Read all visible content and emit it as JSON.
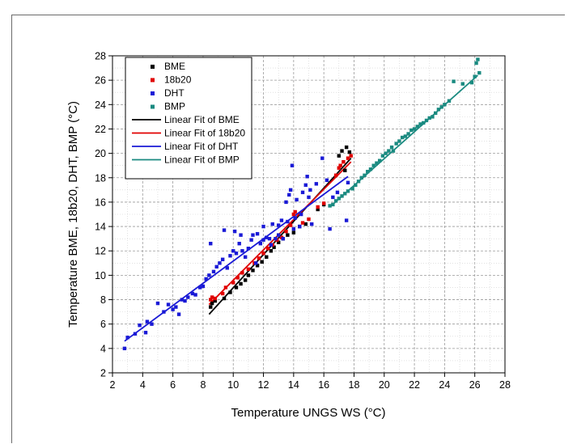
{
  "chart_data": {
    "type": "scatter",
    "xlabel": "Temperature UNGS WS (°C)",
    "ylabel": "Temperature BME, 18b20, DHT, BMP (°C)",
    "xlim": [
      2,
      28
    ],
    "ylim": [
      2,
      28
    ],
    "xticks": [
      "2",
      "4",
      "6",
      "8",
      "10",
      "12",
      "14",
      "16",
      "18",
      "20",
      "22",
      "24",
      "26",
      "28"
    ],
    "yticks": [
      "2",
      "4",
      "6",
      "8",
      "10",
      "12",
      "14",
      "16",
      "18",
      "20",
      "22",
      "24",
      "26",
      "28"
    ],
    "grid": true,
    "legend_position": "top-left",
    "series": [
      {
        "name": "BME",
        "color": "#000000",
        "marker": "square",
        "points": [
          [
            8.5,
            7.4
          ],
          [
            8.6,
            7.7
          ],
          [
            8.8,
            7.9
          ],
          [
            9.4,
            8.1
          ],
          [
            9.8,
            8.6
          ],
          [
            10.2,
            9.0
          ],
          [
            10.5,
            9.3
          ],
          [
            10.8,
            9.6
          ],
          [
            11.0,
            10.0
          ],
          [
            11.3,
            10.4
          ],
          [
            11.6,
            10.8
          ],
          [
            11.9,
            11.1
          ],
          [
            12.2,
            11.5
          ],
          [
            12.5,
            12.0
          ],
          [
            12.7,
            12.3
          ],
          [
            13.0,
            12.7
          ],
          [
            13.3,
            13.0
          ],
          [
            13.6,
            13.3
          ],
          [
            14.0,
            13.5
          ],
          [
            14.4,
            14.0
          ],
          [
            14.8,
            14.2
          ],
          [
            15.6,
            15.4
          ],
          [
            16.0,
            15.8
          ],
          [
            17.0,
            19.8
          ],
          [
            17.2,
            20.2
          ],
          [
            17.5,
            20.5
          ],
          [
            17.7,
            20.1
          ],
          [
            17.4,
            18.6
          ]
        ]
      },
      {
        "name": "18b20",
        "color": "#e00000",
        "marker": "square",
        "points": [
          [
            8.5,
            8.0
          ],
          [
            8.6,
            8.2
          ],
          [
            8.8,
            8.1
          ],
          [
            9.3,
            8.5
          ],
          [
            9.5,
            9.0
          ],
          [
            10.0,
            9.4
          ],
          [
            10.3,
            9.8
          ],
          [
            10.6,
            10.2
          ],
          [
            11.0,
            10.5
          ],
          [
            11.4,
            11.0
          ],
          [
            11.7,
            11.4
          ],
          [
            12.0,
            11.8
          ],
          [
            12.3,
            12.2
          ],
          [
            12.6,
            12.5
          ],
          [
            12.9,
            12.9
          ],
          [
            13.2,
            13.1
          ],
          [
            13.5,
            13.6
          ],
          [
            13.8,
            14.1
          ],
          [
            14.0,
            15.0
          ],
          [
            14.1,
            15.2
          ],
          [
            14.6,
            14.3
          ],
          [
            15.0,
            14.6
          ],
          [
            15.6,
            15.6
          ],
          [
            16.0,
            15.9
          ],
          [
            16.8,
            18.2
          ],
          [
            17.0,
            18.8
          ],
          [
            17.1,
            19.0
          ],
          [
            17.3,
            19.3
          ],
          [
            17.6,
            19.6
          ],
          [
            17.8,
            19.8
          ]
        ]
      },
      {
        "name": "DHT",
        "color": "#1a1ad6",
        "marker": "square",
        "points": [
          [
            2.8,
            4.0
          ],
          [
            3.0,
            4.9
          ],
          [
            3.5,
            5.2
          ],
          [
            3.8,
            5.9
          ],
          [
            4.2,
            5.3
          ],
          [
            4.3,
            6.2
          ],
          [
            4.6,
            6.0
          ],
          [
            5.0,
            7.7
          ],
          [
            5.4,
            7.0
          ],
          [
            5.7,
            7.6
          ],
          [
            6.0,
            7.2
          ],
          [
            6.2,
            7.4
          ],
          [
            6.4,
            6.8
          ],
          [
            6.6,
            8.0
          ],
          [
            6.8,
            7.9
          ],
          [
            7.0,
            8.2
          ],
          [
            7.3,
            8.5
          ],
          [
            7.5,
            8.4
          ],
          [
            7.8,
            9.0
          ],
          [
            8.0,
            9.1
          ],
          [
            8.2,
            9.7
          ],
          [
            8.4,
            10.0
          ],
          [
            8.5,
            12.6
          ],
          [
            8.7,
            10.3
          ],
          [
            8.9,
            10.7
          ],
          [
            9.1,
            11.0
          ],
          [
            9.3,
            11.3
          ],
          [
            9.4,
            13.7
          ],
          [
            9.6,
            10.6
          ],
          [
            9.8,
            11.6
          ],
          [
            10.0,
            12.0
          ],
          [
            10.1,
            13.6
          ],
          [
            10.2,
            11.8
          ],
          [
            10.4,
            12.6
          ],
          [
            10.5,
            13.3
          ],
          [
            10.6,
            12.0
          ],
          [
            10.8,
            11.5
          ],
          [
            11.0,
            12.2
          ],
          [
            11.2,
            12.9
          ],
          [
            11.3,
            13.3
          ],
          [
            11.5,
            11.0
          ],
          [
            11.6,
            13.4
          ],
          [
            11.8,
            12.6
          ],
          [
            12.0,
            14.0
          ],
          [
            12.0,
            12.9
          ],
          [
            12.2,
            13.1
          ],
          [
            12.4,
            13.0
          ],
          [
            12.5,
            12.5
          ],
          [
            12.6,
            14.2
          ],
          [
            12.8,
            13.0
          ],
          [
            13.0,
            13.3
          ],
          [
            13.0,
            14.1
          ],
          [
            13.2,
            14.5
          ],
          [
            13.3,
            13.0
          ],
          [
            13.5,
            16.0
          ],
          [
            13.6,
            14.4
          ],
          [
            13.7,
            16.6
          ],
          [
            13.8,
            17.0
          ],
          [
            13.9,
            19.0
          ],
          [
            14.0,
            13.8
          ],
          [
            14.1,
            14.7
          ],
          [
            14.2,
            16.2
          ],
          [
            14.4,
            14.0
          ],
          [
            14.5,
            15.0
          ],
          [
            14.6,
            16.8
          ],
          [
            14.8,
            17.4
          ],
          [
            14.9,
            18.1
          ],
          [
            15.0,
            16.4
          ],
          [
            15.1,
            17.0
          ],
          [
            15.2,
            14.2
          ],
          [
            15.5,
            17.5
          ],
          [
            15.9,
            19.6
          ],
          [
            16.2,
            17.8
          ],
          [
            16.4,
            13.8
          ],
          [
            16.6,
            16.4
          ],
          [
            16.9,
            16.8
          ],
          [
            17.5,
            14.5
          ],
          [
            17.6,
            17.6
          ]
        ]
      },
      {
        "name": "BMP",
        "color": "#1a8a80",
        "marker": "square",
        "points": [
          [
            16.4,
            15.7
          ],
          [
            16.6,
            15.8
          ],
          [
            16.8,
            16.1
          ],
          [
            17.0,
            16.3
          ],
          [
            17.2,
            16.5
          ],
          [
            17.4,
            16.7
          ],
          [
            17.6,
            16.9
          ],
          [
            17.9,
            17.1
          ],
          [
            18.1,
            17.4
          ],
          [
            18.3,
            17.7
          ],
          [
            18.5,
            18.0
          ],
          [
            18.7,
            18.2
          ],
          [
            18.9,
            18.5
          ],
          [
            19.1,
            18.7
          ],
          [
            19.3,
            19.0
          ],
          [
            19.5,
            19.2
          ],
          [
            19.7,
            19.4
          ],
          [
            19.9,
            19.8
          ],
          [
            20.1,
            20.0
          ],
          [
            20.3,
            20.2
          ],
          [
            20.5,
            20.5
          ],
          [
            20.6,
            20.2
          ],
          [
            20.8,
            20.8
          ],
          [
            21.0,
            21.0
          ],
          [
            21.2,
            21.3
          ],
          [
            21.4,
            21.4
          ],
          [
            21.6,
            21.6
          ],
          [
            21.8,
            21.9
          ],
          [
            22.0,
            22.0
          ],
          [
            22.2,
            22.2
          ],
          [
            22.4,
            22.4
          ],
          [
            22.6,
            22.5
          ],
          [
            22.8,
            22.7
          ],
          [
            23.0,
            22.9
          ],
          [
            23.2,
            23.0
          ],
          [
            23.4,
            23.3
          ],
          [
            23.6,
            23.6
          ],
          [
            23.8,
            23.8
          ],
          [
            24.0,
            24.0
          ],
          [
            24.3,
            24.3
          ],
          [
            24.6,
            25.9
          ],
          [
            25.2,
            25.7
          ],
          [
            25.8,
            25.8
          ],
          [
            26.0,
            26.3
          ],
          [
            26.1,
            27.4
          ],
          [
            26.2,
            27.7
          ],
          [
            26.3,
            26.6
          ]
        ]
      }
    ],
    "fits": [
      {
        "name": "Linear Fit of BME",
        "color": "#000000",
        "line": [
          [
            8.4,
            6.8
          ],
          [
            17.8,
            19.6
          ]
        ]
      },
      {
        "name": "Linear Fit of 18b20",
        "color": "#e00000",
        "line": [
          [
            8.4,
            7.6
          ],
          [
            17.8,
            19.3
          ]
        ]
      },
      {
        "name": "Linear Fit of DHT",
        "color": "#1a1ad6",
        "line": [
          [
            2.8,
            4.6
          ],
          [
            17.6,
            18.1
          ]
        ]
      },
      {
        "name": "Linear Fit of BMP",
        "color": "#1a8a80",
        "line": [
          [
            16.4,
            15.6
          ],
          [
            26.2,
            26.4
          ]
        ]
      }
    ]
  }
}
